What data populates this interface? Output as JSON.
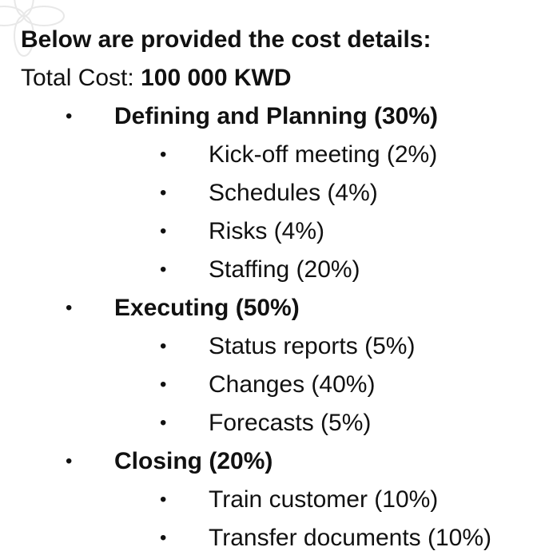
{
  "heading": "Below are provided the cost details:",
  "total": {
    "label": "Total Cost:",
    "value": "100 000 KWD"
  },
  "phases": [
    {
      "label": "Defining and Planning (30%)",
      "items": [
        "Kick-off meeting (2%)",
        "Schedules (4%)",
        "Risks (4%)",
        "Staffing (20%)"
      ]
    },
    {
      "label": "Executing (50%)",
      "items": [
        "Status reports (5%)",
        "Changes (40%)",
        "Forecasts (5%)"
      ]
    },
    {
      "label": "Closing (20%)",
      "items": [
        "Train customer (10%)",
        "Transfer documents (10%)"
      ]
    }
  ],
  "bullet_glyph": "•",
  "colors": {
    "text": "#111111",
    "background": "#ffffff",
    "watermark": "#e8e8e8"
  }
}
